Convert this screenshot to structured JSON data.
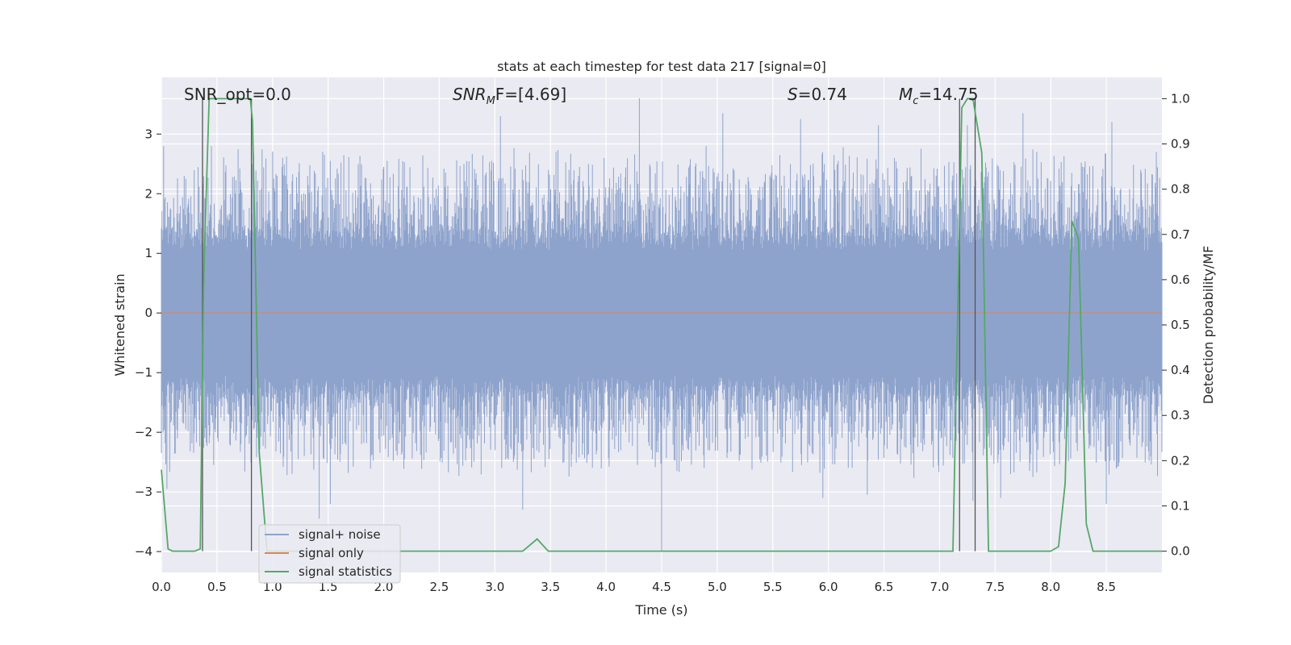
{
  "chart_data": {
    "type": "line",
    "title": "stats at each timestep for test data 217 [signal=0]",
    "xlabel": "Time (s)",
    "ylabel": "Whitened strain",
    "y2label": "Detection probability/MF",
    "xlim": [
      0.0,
      9.0
    ],
    "ylim": [
      -4.35,
      3.95
    ],
    "y2lim": [
      -0.047,
      1.047
    ],
    "xticks": [
      "0.0",
      "0.5",
      "1.0",
      "1.5",
      "2.0",
      "2.5",
      "3.0",
      "3.5",
      "4.0",
      "4.5",
      "5.0",
      "5.5",
      "6.0",
      "6.5",
      "7.0",
      "7.5",
      "8.0",
      "8.5"
    ],
    "yticks": [
      "3",
      "2",
      "1",
      "0",
      "−1",
      "−2",
      "−3",
      "−4"
    ],
    "y2ticks": [
      "1.0",
      "0.9",
      "0.8",
      "0.7",
      "0.6",
      "0.5",
      "0.4",
      "0.3",
      "0.2",
      "0.1",
      "0.0"
    ],
    "grid": true,
    "legend_position": "lower-left",
    "annotations": {
      "snr_opt": "SNR_opt=0.0",
      "snr_mf_main": "SNR",
      "snr_mf_sub": "M",
      "snr_mf_rest": "F=[4.69]",
      "s_main": "S",
      "s_rest": "=0.74",
      "mc_main": "M",
      "mc_sub": "c",
      "mc_rest": "=14.75"
    },
    "markers_x": [
      0.37,
      0.81,
      7.18,
      7.32
    ],
    "series": [
      {
        "name": "signal+ noise",
        "color": "#8ea3cc",
        "description_envelope": {
          "upper_peaks": [
            [
              0.02,
              2.8
            ],
            [
              0.45,
              2.8
            ],
            [
              0.83,
              2.65
            ],
            [
              1.52,
              2.55
            ],
            [
              2.0,
              2.45
            ],
            [
              3.05,
              3.3
            ],
            [
              3.55,
              2.7
            ],
            [
              4.3,
              3.6
            ],
            [
              4.9,
              2.8
            ],
            [
              5.05,
              3.35
            ],
            [
              5.75,
              3.25
            ],
            [
              6.05,
              2.65
            ],
            [
              6.45,
              3.15
            ],
            [
              7.25,
              3.15
            ],
            [
              7.75,
              3.35
            ],
            [
              8.55,
              3.2
            ],
            [
              8.95,
              2.7
            ]
          ],
          "lower_peaks": [
            [
              0.05,
              -2.95
            ],
            [
              0.37,
              -2.75
            ],
            [
              1.42,
              -3.45
            ],
            [
              1.52,
              -3.2
            ],
            [
              3.25,
              -3.3
            ],
            [
              4.5,
              -4.0
            ],
            [
              5.95,
              -3.1
            ],
            [
              6.35,
              -3.05
            ],
            [
              7.3,
              -3.15
            ],
            [
              7.55,
              -3.1
            ],
            [
              8.5,
              -3.2
            ],
            [
              8.9,
              -2.4
            ]
          ]
        }
      },
      {
        "name": "signal only",
        "color": "#dd8452",
        "x": [
          0.0,
          9.0
        ],
        "y": [
          0.0,
          0.0
        ]
      },
      {
        "name": "signal statistics",
        "color": "#55a868",
        "axis": "right",
        "x": [
          0.0,
          0.06,
          0.1,
          0.2,
          0.3,
          0.35,
          0.38,
          0.43,
          0.5,
          0.6,
          0.7,
          0.8,
          0.82,
          0.88,
          0.95,
          1.0,
          1.5,
          2.0,
          2.5,
          3.0,
          3.25,
          3.38,
          3.48,
          4.0,
          5.0,
          6.0,
          7.0,
          7.12,
          7.2,
          7.25,
          7.3,
          7.38,
          7.44,
          7.5,
          7.8,
          8.0,
          8.07,
          8.13,
          8.19,
          8.25,
          8.32,
          8.38,
          8.5,
          9.0
        ],
        "y": [
          0.18,
          0.005,
          0.0,
          0.0,
          0.0,
          0.005,
          0.6,
          1.0,
          1.0,
          1.0,
          1.0,
          1.0,
          0.95,
          0.22,
          0.0,
          0.0,
          0.0,
          0.0,
          0.0,
          0.0,
          0.0,
          0.027,
          0.0,
          0.0,
          0.0,
          0.0,
          0.0,
          0.0,
          0.98,
          1.0,
          1.0,
          0.88,
          0.0,
          0.0,
          0.0,
          0.0,
          0.01,
          0.15,
          0.73,
          0.69,
          0.06,
          0.0,
          0.0,
          0.0
        ]
      }
    ]
  }
}
